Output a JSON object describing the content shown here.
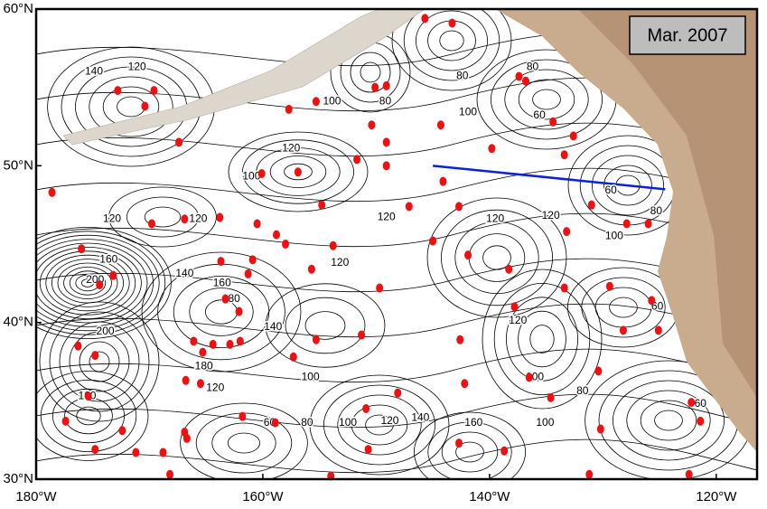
{
  "chart_data": {
    "type": "map",
    "lonlim": [
      -180,
      -116.4
    ],
    "latlim": [
      30,
      60
    ],
    "xticks": [
      {
        "value": -180,
        "label": "180°W"
      },
      {
        "value": -160,
        "label": "160°W"
      },
      {
        "value": -140,
        "label": "140°W"
      },
      {
        "value": -120,
        "label": "120°W"
      }
    ],
    "yticks": [
      {
        "value": 30,
        "label": "30°N"
      },
      {
        "value": 40,
        "label": "40°N"
      },
      {
        "value": 50,
        "label": "50°N"
      },
      {
        "value": 60,
        "label": "60°N"
      }
    ],
    "date_label": "Mar. 2007",
    "transect": {
      "color": "#0a22d8",
      "lon": [
        -145,
        -124.5
      ],
      "lat": [
        50,
        48.5
      ]
    },
    "station_color": "#ee1111",
    "stations": {
      "lon": [
        -178.6,
        -172.8,
        -169.6,
        -170.4,
        -167.4,
        -166.9,
        -169.8,
        -163.8,
        -160.5,
        -160.1,
        -156.9,
        -157.7,
        -155.3,
        -150.1,
        -149.1,
        -150.4,
        -149.1,
        -151.7,
        -149.1,
        -145.7,
        -143.3,
        -144.1,
        -144.3,
        -139.8,
        -137.4,
        -136.8,
        -134.4,
        -132.6,
        -133.4,
        -131.0,
        -127.9,
        -126.0,
        -133.2,
        -142.7,
        -147.1,
        -149.7,
        -145.0,
        -138.3,
        -141.9,
        -154.8,
        -155.7,
        -153.8,
        -158.8,
        -158.0,
        -160.9,
        -161.3,
        -163.7,
        -163.3,
        -162.1,
        -162.0,
        -165.3,
        -166.1,
        -166.8,
        -165.5,
        -164.4,
        -162.9,
        -157.3,
        -158.9,
        -161.8,
        -166.9,
        -166.7,
        -168.8,
        -168.2,
        -171.2,
        -174.8,
        -172.4,
        -177.4,
        -174.4,
        -173.2,
        -176.0,
        -176.3,
        -174.8,
        -175.4,
        -155.3,
        -151.3,
        -148.1,
        -150.9,
        -150.7,
        -142.7,
        -142.2,
        -138.7,
        -137.8,
        -142.6,
        -136.5,
        -134.6,
        -130.4,
        -130.2,
        -131.2,
        -128.2,
        -125.7,
        -129.4,
        -125.1,
        -133.4,
        -122.2,
        -121.4,
        -122.4,
        -154.0
      ],
      "lat": [
        48.3,
        54.8,
        54.8,
        53.8,
        51.5,
        46.6,
        46.3,
        46.7,
        46.3,
        49.5,
        49.6,
        53.6,
        54.1,
        55.0,
        55.1,
        52.6,
        51.5,
        50.4,
        50.0,
        59.4,
        59.1,
        49.0,
        52.6,
        51.1,
        55.7,
        55.4,
        52.8,
        51.9,
        50.7,
        47.5,
        46.3,
        46.3,
        45.8,
        47.4,
        47.4,
        42.2,
        45.2,
        43.4,
        44.3,
        47.5,
        43.4,
        44.9,
        45.6,
        45.0,
        44.0,
        43.1,
        43.9,
        41.5,
        40.7,
        38.8,
        38.1,
        38.8,
        36.3,
        36.1,
        38.6,
        38.6,
        37.8,
        33.6,
        34.0,
        33.0,
        32.6,
        31.7,
        30.3,
        31.7,
        31.9,
        33.1,
        33.7,
        42.4,
        43.0,
        44.7,
        38.5,
        37.9,
        35.3,
        38.9,
        39.2,
        35.5,
        34.5,
        31.9,
        32.3,
        36.1,
        31.8,
        41.0,
        38.9,
        36.5,
        35.2,
        36.9,
        33.2,
        30.3,
        39.5,
        41.4,
        42.3,
        39.5,
        42.2,
        34.9,
        33.7,
        30.3,
        30.2
      ]
    },
    "contour_labels": {
      "labels": [
        "140",
        "120",
        "100",
        "80",
        "80",
        "100",
        "80",
        "60",
        "120",
        "100",
        "120",
        "120",
        "120",
        "120",
        "120",
        "60",
        "80",
        "100",
        "120",
        "140",
        "160",
        "180",
        "160",
        "200",
        "120",
        "140",
        "60",
        "200",
        "180",
        "100",
        "120",
        "100",
        "80",
        "160",
        "60",
        "80",
        "100",
        "120",
        "140",
        "160",
        "100",
        "60"
      ],
      "lon": [
        -174.9,
        -171.1,
        -153.9,
        -149.2,
        -142.4,
        -141.9,
        -136.2,
        -135.6,
        -157.5,
        -161.0,
        -173.3,
        -165.7,
        -149.1,
        -139.5,
        -134.6,
        -129.3,
        -125.3,
        -129.0,
        -153.2,
        -166.9,
        -163.6,
        -162.8,
        -173.6,
        -174.8,
        -137.5,
        -159.1,
        -125.2,
        -173.9,
        -165.2,
        -155.8,
        -164.2,
        -136.0,
        -131.8,
        -175.5,
        -159.4,
        -156.1,
        -152.5,
        -148.8,
        -146.1,
        -141.4,
        -135.1,
        -121.4
      ],
      "lat": [
        56.0,
        56.3,
        54.1,
        54.1,
        55.7,
        53.4,
        56.3,
        53.2,
        51.1,
        49.3,
        46.6,
        46.6,
        46.7,
        46.6,
        46.8,
        48.4,
        47.1,
        45.5,
        43.8,
        43.1,
        42.5,
        41.5,
        44.0,
        42.7,
        40.1,
        39.7,
        41.0,
        39.4,
        37.2,
        36.5,
        35.8,
        36.5,
        35.6,
        35.3,
        33.6,
        33.6,
        33.6,
        33.7,
        33.9,
        33.6,
        33.6,
        34.8
      ]
    }
  }
}
